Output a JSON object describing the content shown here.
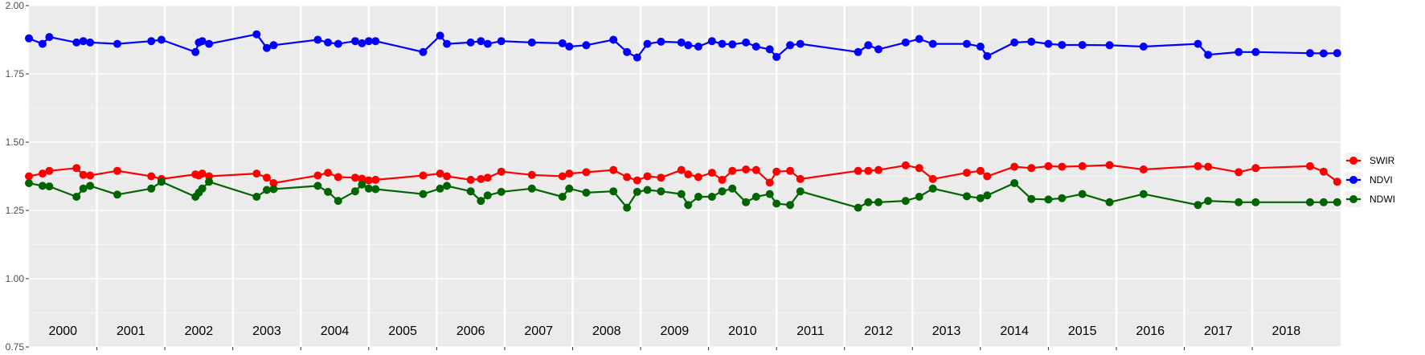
{
  "chart_data": {
    "type": "line",
    "xlim": [
      1999.5,
      2018.8
    ],
    "ylim": [
      0.75,
      2.0
    ],
    "y_ticks": [
      0.75,
      1.0,
      1.25,
      1.5,
      1.75,
      2.0
    ],
    "y_tick_labels": [
      "0.75",
      "1.00",
      "1.25",
      "1.50",
      "1.75",
      "2.00"
    ],
    "year_boundaries": [
      2001.0,
      2002.0,
      2003.0,
      2004.0,
      2005.0,
      2006.0,
      2007.0,
      2008.0,
      2009.0,
      2010.0,
      2011.0,
      2012.0,
      2013.0,
      2014.0,
      2015.0,
      2016.0,
      2017.0,
      2018.0
    ],
    "year_labels": [
      {
        "label": "2000",
        "x": 2000.0
      },
      {
        "label": "2001",
        "x": 2001.0
      },
      {
        "label": "2002",
        "x": 2002.0
      },
      {
        "label": "2003",
        "x": 2003.0
      },
      {
        "label": "2004",
        "x": 2004.0
      },
      {
        "label": "2005",
        "x": 2005.0
      },
      {
        "label": "2006",
        "x": 2006.0
      },
      {
        "label": "2007",
        "x": 2007.0
      },
      {
        "label": "2008",
        "x": 2008.0
      },
      {
        "label": "2009",
        "x": 2009.0
      },
      {
        "label": "2010",
        "x": 2010.0
      },
      {
        "label": "2011",
        "x": 2011.0
      },
      {
        "label": "2012",
        "x": 2012.0
      },
      {
        "label": "2013",
        "x": 2013.0
      },
      {
        "label": "2014",
        "x": 2014.0
      },
      {
        "label": "2015",
        "x": 2015.0
      },
      {
        "label": "2016",
        "x": 2016.0
      },
      {
        "label": "2017",
        "x": 2017.0
      },
      {
        "label": "2018",
        "x": 2018.0
      }
    ],
    "grid": true,
    "legend_position": "right",
    "x": [
      1999.5,
      1999.7,
      1999.8,
      2000.2,
      2000.3,
      2000.4,
      2000.8,
      2001.3,
      2001.45,
      2001.95,
      2002.0,
      2002.05,
      2002.15,
      2002.85,
      2003.0,
      2003.1,
      2003.75,
      2003.9,
      2004.05,
      2004.3,
      2004.4,
      2004.5,
      2004.6,
      2005.3,
      2005.55,
      2005.65,
      2006.0,
      2006.15,
      2006.25,
      2006.45,
      2006.9,
      2007.35,
      2007.45,
      2007.7,
      2008.1,
      2008.3,
      2008.45,
      2008.6,
      2008.8,
      2009.1,
      2009.2,
      2009.35,
      2009.55,
      2009.7,
      2009.85,
      2010.05,
      2010.2,
      2010.4,
      2010.5,
      2010.7,
      2010.85,
      2011.7,
      2011.85,
      2012.0,
      2012.4,
      2012.6,
      2012.8,
      2013.3,
      2013.5,
      2013.6,
      2014.0,
      2014.25,
      2014.5,
      2014.7,
      2015.0,
      2015.4,
      2015.9,
      2016.7,
      2016.85,
      2017.3,
      2017.55,
      2018.35,
      2018.55,
      2018.75
    ],
    "series": [
      {
        "name": "SWIR",
        "color": "#ff0000",
        "values": [
          1.375,
          1.385,
          1.395,
          1.405,
          1.38,
          1.378,
          1.395,
          1.375,
          1.365,
          1.382,
          1.378,
          1.385,
          1.375,
          1.385,
          1.37,
          1.35,
          1.378,
          1.388,
          1.372,
          1.37,
          1.366,
          1.36,
          1.362,
          1.378,
          1.385,
          1.375,
          1.362,
          1.365,
          1.37,
          1.392,
          1.38,
          1.375,
          1.385,
          1.39,
          1.398,
          1.372,
          1.36,
          1.375,
          1.37,
          1.398,
          1.382,
          1.372,
          1.388,
          1.362,
          1.395,
          1.4,
          1.398,
          1.352,
          1.392,
          1.395,
          1.365,
          1.395,
          1.395,
          1.398,
          1.415,
          1.405,
          1.365,
          1.388,
          1.395,
          1.375,
          1.41,
          1.405,
          1.412,
          1.41,
          1.412,
          1.416,
          1.4,
          1.412,
          1.41,
          1.39,
          1.405,
          1.412,
          1.392,
          1.355
        ]
      },
      {
        "name": "NDVI",
        "color": "#0000ff",
        "values": [
          1.88,
          1.86,
          1.885,
          1.865,
          1.87,
          1.865,
          1.86,
          1.87,
          1.875,
          1.83,
          1.865,
          1.87,
          1.86,
          1.895,
          1.845,
          1.855,
          1.875,
          1.865,
          1.86,
          1.87,
          1.862,
          1.87,
          1.87,
          1.83,
          1.89,
          1.86,
          1.865,
          1.87,
          1.86,
          1.87,
          1.865,
          1.862,
          1.85,
          1.855,
          1.875,
          1.83,
          1.81,
          1.86,
          1.868,
          1.865,
          1.855,
          1.85,
          1.87,
          1.86,
          1.858,
          1.865,
          1.85,
          1.84,
          1.812,
          1.855,
          1.86,
          1.83,
          1.855,
          1.84,
          1.865,
          1.878,
          1.86,
          1.86,
          1.85,
          1.815,
          1.865,
          1.868,
          1.86,
          1.856,
          1.856,
          1.855,
          1.85,
          1.86,
          1.82,
          1.83,
          1.83,
          1.826,
          1.825,
          1.826
        ]
      },
      {
        "name": "NDWI",
        "color": "#006400",
        "values": [
          1.35,
          1.34,
          1.338,
          1.3,
          1.33,
          1.34,
          1.308,
          1.33,
          1.355,
          1.3,
          1.315,
          1.33,
          1.355,
          1.3,
          1.325,
          1.328,
          1.34,
          1.318,
          1.285,
          1.32,
          1.345,
          1.33,
          1.328,
          1.31,
          1.33,
          1.34,
          1.32,
          1.285,
          1.305,
          1.318,
          1.33,
          1.3,
          1.33,
          1.315,
          1.32,
          1.26,
          1.318,
          1.325,
          1.32,
          1.31,
          1.27,
          1.3,
          1.3,
          1.32,
          1.33,
          1.28,
          1.3,
          1.31,
          1.275,
          1.27,
          1.32,
          1.26,
          1.28,
          1.28,
          1.285,
          1.3,
          1.33,
          1.302,
          1.295,
          1.305,
          1.35,
          1.292,
          1.29,
          1.295,
          1.31,
          1.28,
          1.31,
          1.27,
          1.285,
          1.28,
          1.28,
          1.28,
          1.28,
          1.28
        ]
      }
    ]
  }
}
